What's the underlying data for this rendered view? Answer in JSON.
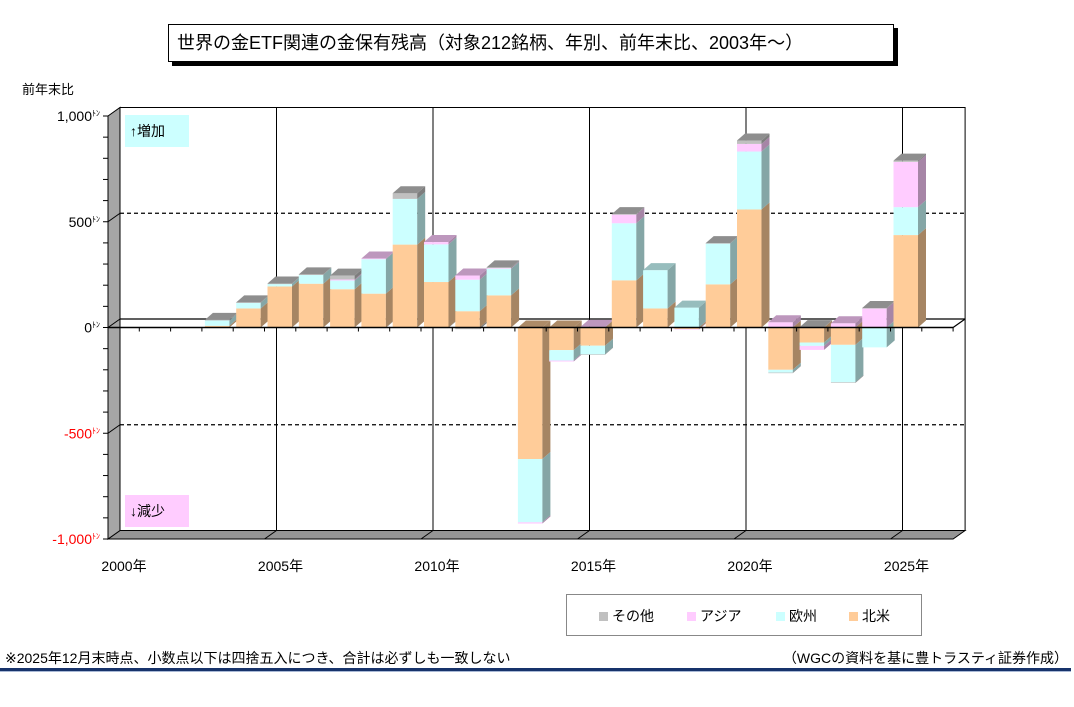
{
  "chart_data": {
    "type": "bar",
    "subtype": "stacked-3d",
    "title": "世界の金ETF関連の金保有残高（対象212銘柄、年別、前年末比、2003年～）",
    "ylabel": "前年末比",
    "xlabel": "",
    "unit": "ﾄﾝ",
    "ylim": [
      -1000,
      1000
    ],
    "xlim": [
      2000,
      2027
    ],
    "minor_tick_step": 100,
    "grid": true,
    "y_ticks": [
      {
        "value": 1000,
        "label": "1,000"
      },
      {
        "value": 500,
        "label": "500"
      },
      {
        "value": 0,
        "label": "0"
      },
      {
        "value": -500,
        "label": "-500"
      },
      {
        "value": -1000,
        "label": "-1,000"
      }
    ],
    "x_ticks": [
      {
        "value": 2000,
        "label": "2000年"
      },
      {
        "value": 2005,
        "label": "2005年"
      },
      {
        "value": 2010,
        "label": "2010年"
      },
      {
        "value": 2015,
        "label": "2015年"
      },
      {
        "value": 2020,
        "label": "2020年"
      },
      {
        "value": 2025,
        "label": "2025年"
      }
    ],
    "categories": [
      2003,
      2004,
      2005,
      2006,
      2007,
      2008,
      2009,
      2010,
      2011,
      2012,
      2013,
      2014,
      2015,
      2016,
      2017,
      2018,
      2019,
      2020,
      2021,
      2022,
      2023,
      2024,
      2025
    ],
    "series": [
      {
        "name": "北米",
        "color": "#FFCC99",
        "values": [
          8,
          90,
          194,
          207,
          181,
          160,
          392,
          215,
          77,
          152,
          -622,
          -107,
          -86,
          223,
          90,
          -7,
          204,
          558,
          -200,
          -71,
          -82,
          0,
          437
        ]
      },
      {
        "name": "欧州",
        "color": "#CCFFFF",
        "values": [
          25,
          27,
          13,
          43,
          41,
          163,
          216,
          178,
          149,
          126,
          -299,
          -49,
          -41,
          270,
          181,
          94,
          193,
          274,
          -13,
          -16,
          -177,
          -94,
          132
        ]
      },
      {
        "name": "アジア",
        "color": "#FFCCFF",
        "values": [
          0,
          0,
          0,
          0,
          5,
          3,
          0,
          11,
          20,
          3,
          -6,
          -5,
          3,
          41,
          0,
          -3,
          0,
          36,
          25,
          -19,
          20,
          90,
          214
        ]
      },
      {
        "name": "その他",
        "color": "#C0C0C0",
        "values": [
          3,
          2,
          1,
          1,
          18,
          -2,
          27,
          -2,
          -8,
          3,
          0,
          0,
          -2,
          2,
          0,
          0,
          2,
          16,
          -3,
          2,
          -3,
          2,
          6
        ]
      }
    ],
    "legend": {
      "placement": "bottom-right",
      "entries": [
        "その他",
        "アジア",
        "欧州",
        "北米"
      ]
    },
    "annotations": {
      "increase": "↑増加",
      "decrease": "↓減少"
    },
    "negative_label_color": "#FF0000"
  },
  "footer": {
    "note": "※2025年12月末時点、小数点以下は四捨五入につき、合計は必ずしも一致しない",
    "source": "（WGCの資料を基に豊トラスティ証券作成）"
  }
}
